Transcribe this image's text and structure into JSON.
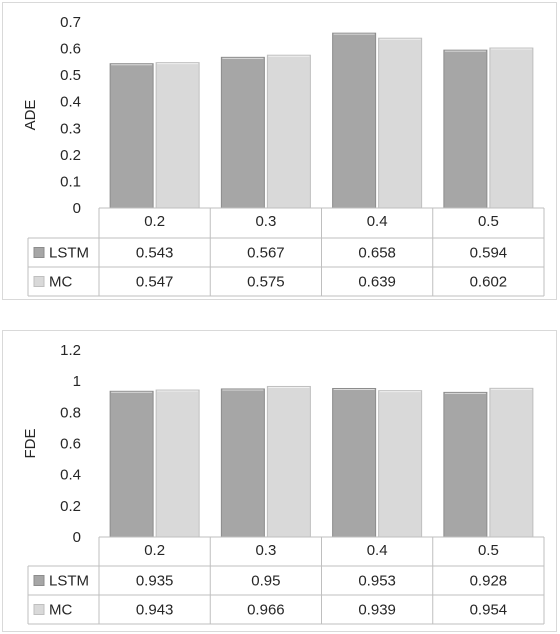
{
  "chart_data": [
    {
      "type": "bar",
      "title": "",
      "xlabel": "",
      "ylabel": "ADE",
      "ylim": [
        0,
        0.7
      ],
      "yticks": [
        "0",
        "0.1",
        "0.2",
        "0.3",
        "0.4",
        "0.5",
        "0.6",
        "0.7"
      ],
      "grid": false,
      "legend": "data-table",
      "categories": [
        "0.2",
        "0.3",
        "0.4",
        "0.5"
      ],
      "series": [
        {
          "name": "LSTM",
          "color": "#a6a6a6",
          "values": [
            0.543,
            0.567,
            0.658,
            0.594
          ],
          "labels": [
            "0.543",
            "0.567",
            "0.658",
            "0.594"
          ]
        },
        {
          "name": "MC",
          "color": "#d9d9d9",
          "values": [
            0.547,
            0.575,
            0.639,
            0.602
          ],
          "labels": [
            "0.547",
            "0.575",
            "0.639",
            "0.602"
          ]
        }
      ]
    },
    {
      "type": "bar",
      "title": "",
      "xlabel": "",
      "ylabel": "FDE",
      "ylim": [
        0,
        1.2
      ],
      "yticks": [
        "0",
        "0.2",
        "0.4",
        "0.6",
        "0.8",
        "1",
        "1.2"
      ],
      "grid": false,
      "legend": "data-table",
      "categories": [
        "0.2",
        "0.3",
        "0.4",
        "0.5"
      ],
      "series": [
        {
          "name": "LSTM",
          "color": "#a6a6a6",
          "values": [
            0.935,
            0.95,
            0.953,
            0.928
          ],
          "labels": [
            "0.935",
            "0.95",
            "0.953",
            "0.928"
          ]
        },
        {
          "name": "MC",
          "color": "#d9d9d9",
          "values": [
            0.943,
            0.966,
            0.939,
            0.954
          ],
          "labels": [
            "0.943",
            "0.966",
            "0.939",
            "0.954"
          ]
        }
      ]
    }
  ]
}
